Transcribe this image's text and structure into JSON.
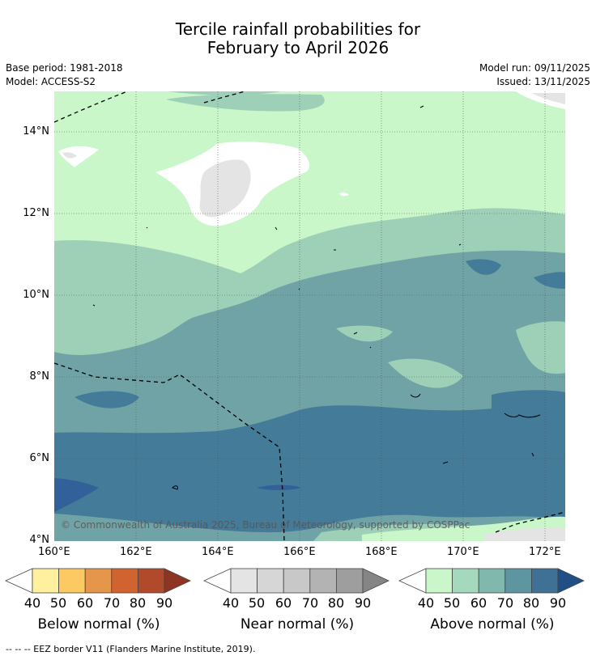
{
  "title": {
    "line1": "Tercile rainfall probabilities for",
    "line2": "February to April 2026"
  },
  "meta": {
    "base_period": "Base period: 1981-2018",
    "model": "Model: ACCESS-S2",
    "model_run": "Model run: 09/11/2025",
    "issued": "Issued: 13/11/2025"
  },
  "map": {
    "lon_range": [
      160,
      172.5
    ],
    "lat_range": [
      4,
      15
    ],
    "x_ticks": [
      "160°E",
      "162°E",
      "164°E",
      "166°E",
      "168°E",
      "170°E",
      "172°E"
    ],
    "y_ticks": [
      "14°N",
      "12°N",
      "10°N",
      "8°N",
      "6°N",
      "4°N"
    ],
    "copyright": "© Commonwealth of Australia 2025, Bureau of Meteorology, supported by COSPPac",
    "colors": {
      "above_50": "#c9f7c9",
      "above_60": "#9dd0b6",
      "above_70": "#6fa3a6",
      "above_80": "#437b98",
      "above_90": "#326098",
      "near_40": "#e4e4e4"
    }
  },
  "colorbars": [
    {
      "title": "Below normal (%)",
      "ticks": [
        "40",
        "50",
        "60",
        "70",
        "80",
        "90"
      ],
      "colors": [
        "#fff0a0",
        "#fdc962",
        "#e5964a",
        "#d0632f",
        "#b04a2a",
        "#8e3423"
      ]
    },
    {
      "title": "Near normal (%)",
      "ticks": [
        "40",
        "50",
        "60",
        "70",
        "80",
        "90"
      ],
      "colors": [
        "#e4e4e4",
        "#d6d6d6",
        "#c8c8c8",
        "#b3b3b3",
        "#9e9e9e",
        "#858585"
      ]
    },
    {
      "title": "Above normal (%)",
      "ticks": [
        "40",
        "50",
        "60",
        "70",
        "80",
        "90"
      ],
      "colors": [
        "#c9f7c9",
        "#a4d9bd",
        "#80b8ad",
        "#5d95a0",
        "#3f7196",
        "#1f4f85"
      ]
    }
  ],
  "footer": "--  --  -- EEZ border V11 (Flanders Marine Institute, 2019)."
}
